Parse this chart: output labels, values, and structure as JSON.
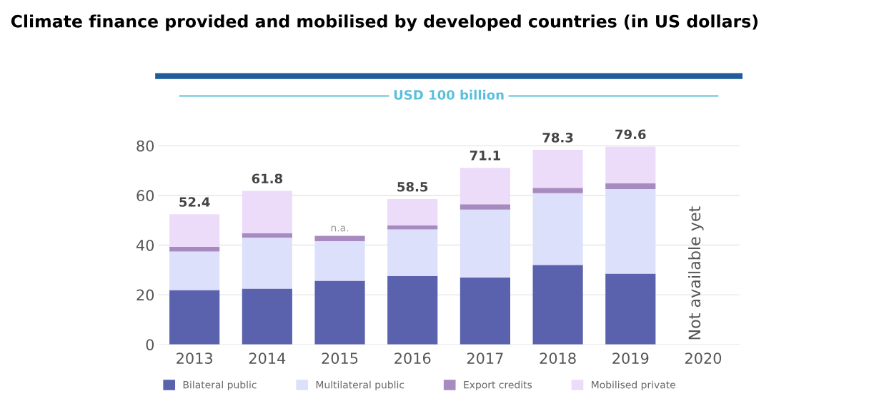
{
  "chart_data": {
    "type": "bar",
    "stacked": true,
    "title": "Climate finance provided and mobilised by developed countries (in US dollars)",
    "categories": [
      "2013",
      "2014",
      "2015",
      "2016",
      "2017",
      "2018",
      "2019",
      "2020"
    ],
    "series": [
      {
        "name": "Bilateral public",
        "color": "#5a62ad",
        "values": [
          21.9,
          22.5,
          25.6,
          27.6,
          27.0,
          32.0,
          28.5,
          null
        ]
      },
      {
        "name": "Multilateral public",
        "color": "#dde0fb",
        "values": [
          15.5,
          20.5,
          16.0,
          18.7,
          27.3,
          28.9,
          34.0,
          null
        ]
      },
      {
        "name": "Export credits",
        "color": "#a78bc0",
        "values": [
          1.9,
          1.7,
          2.1,
          1.6,
          2.1,
          2.1,
          2.3,
          null
        ]
      },
      {
        "name": "Mobilised private",
        "color": "#ecdcfa",
        "values": [
          13.1,
          17.1,
          null,
          10.6,
          14.7,
          15.3,
          14.8,
          null
        ]
      }
    ],
    "totals": [
      "52.4",
      "61.8",
      null,
      "58.5",
      "71.1",
      "78.3",
      "79.6",
      null
    ],
    "ylim": [
      0,
      108
    ],
    "yticks": [
      0,
      20,
      40,
      60,
      80
    ],
    "grid": "y",
    "legend": "bottom",
    "ref_lines": [
      {
        "axis": "y",
        "value": 100,
        "label": "USD 100 billion",
        "color": "#5bbfdc"
      }
    ],
    "annotations": [
      {
        "text": "n.a.",
        "x": "2015",
        "y": 43.7
      },
      "Not available yet"
    ]
  }
}
